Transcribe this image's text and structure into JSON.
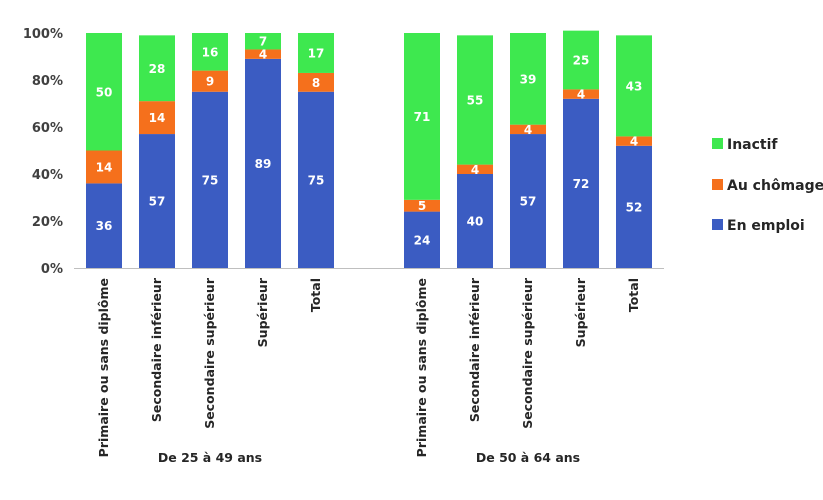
{
  "chart_data": {
    "type": "bar",
    "stacked": true,
    "title": "",
    "xlabel": "",
    "ylabel": "",
    "ylim": [
      0,
      100
    ],
    "y_ticks": [
      "0%",
      "20%",
      "40%",
      "60%",
      "80%",
      "100%"
    ],
    "y_tick_values": [
      0,
      20,
      40,
      60,
      80,
      100
    ],
    "grid": false,
    "legend_position": "right",
    "groups": [
      {
        "label": "De 25 à 49 ans",
        "categories": [
          "Primaire ou sans diplôme",
          "Secondaire inférieur",
          "Secondaire supérieur",
          "Supérieur",
          "Total"
        ],
        "series": [
          {
            "name": "En emploi",
            "values": [
              36,
              57,
              75,
              89,
              75
            ]
          },
          {
            "name": "Au chômage",
            "values": [
              14,
              14,
              9,
              4,
              8
            ]
          },
          {
            "name": "Inactif",
            "values": [
              50,
              28,
              16,
              7,
              17
            ]
          }
        ]
      },
      {
        "label": "De 50 à 64 ans",
        "categories": [
          "Primaire ou sans diplôme",
          "Secondaire inférieur",
          "Secondaire supérieur",
          "Supérieur",
          "Total"
        ],
        "series": [
          {
            "name": "En emploi",
            "values": [
              24,
              40,
              57,
              72,
              52
            ]
          },
          {
            "name": "Au chômage",
            "values": [
              5,
              4,
              4,
              4,
              4
            ]
          },
          {
            "name": "Inactif",
            "values": [
              71,
              55,
              39,
              25,
              43
            ]
          }
        ]
      }
    ],
    "legend": [
      {
        "name": "Inactif",
        "color": "#3ee84f"
      },
      {
        "name": "Au chômage",
        "color": "#f5701c"
      },
      {
        "name": "En emploi",
        "color": "#3b5cc2"
      }
    ],
    "colors": {
      "En emploi": "#3b5cc2",
      "Au chômage": "#f5701c",
      "Inactif": "#3ee84f"
    }
  }
}
